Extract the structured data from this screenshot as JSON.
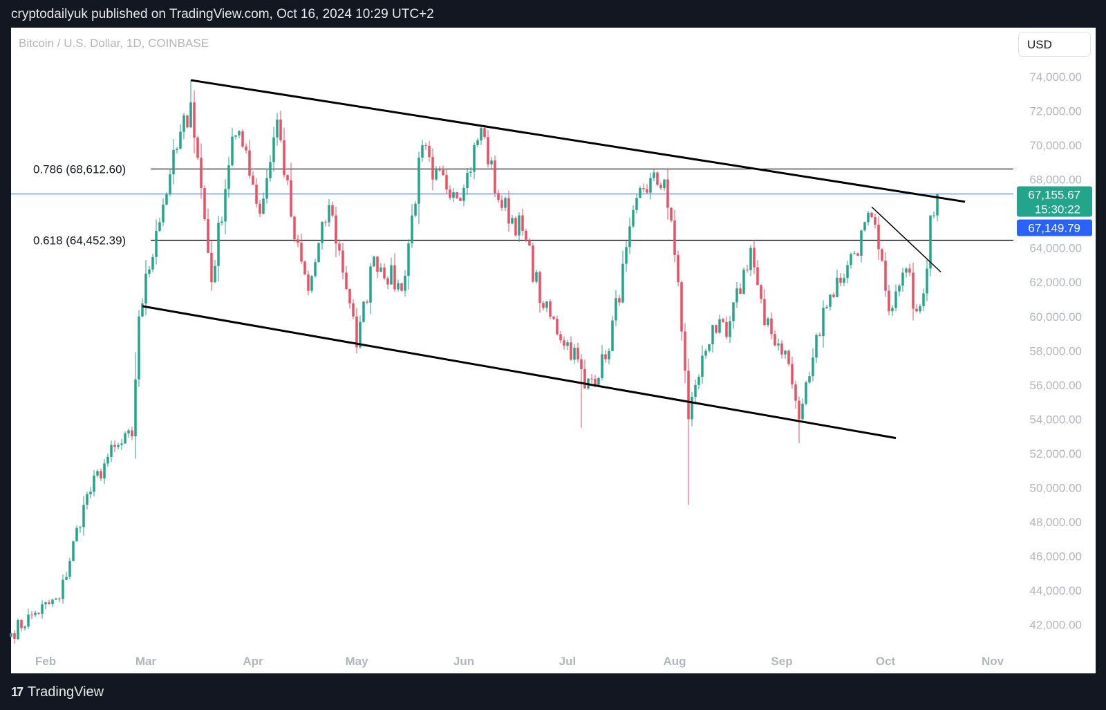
{
  "header": {
    "published_text": "cryptodailyuk published on TradingView.com, Oct 16, 2024 10:29 UTC+2"
  },
  "symbol_title": "Bitcoin / U.S. Dollar, 1D, COINBASE",
  "currency_button": "USD",
  "footer": {
    "logo_icon": "tradingview-logo-icon",
    "brand": "TradingView"
  },
  "colors": {
    "up": "#22a58b",
    "down": "#ef4d62",
    "price_line": "#2962ff",
    "trendline": "#000000"
  },
  "chart_data": {
    "type": "candlestick",
    "title": "Bitcoin / U.S. Dollar, 1D, COINBASE",
    "x_range": [
      "2024-01-22",
      "2024-11-07"
    ],
    "ylim": [
      41000,
      75500
    ],
    "y_ticks": [
      "74,000.00",
      "72,000.00",
      "70,000.00",
      "68,000.00",
      "64,000.00",
      "62,000.00",
      "60,000.00",
      "58,000.00",
      "56,000.00",
      "54,000.00",
      "52,000.00",
      "50,000.00",
      "48,000.00",
      "46,000.00",
      "44,000.00",
      "42,000.00"
    ],
    "y_tick_values": [
      74000,
      72000,
      70000,
      68000,
      64000,
      62000,
      60000,
      58000,
      56000,
      54000,
      52000,
      50000,
      48000,
      46000,
      44000,
      42000
    ],
    "x_ticks": [
      "Feb",
      "Mar",
      "Apr",
      "May",
      "Jun",
      "Jul",
      "Aug",
      "Sep",
      "Oct",
      "Nov"
    ],
    "x_tick_dates": [
      "2024-02-01",
      "2024-03-01",
      "2024-04-01",
      "2024-05-01",
      "2024-06-01",
      "2024-07-01",
      "2024-08-01",
      "2024-09-01",
      "2024-10-01",
      "2024-11-01"
    ],
    "fib_levels": [
      {
        "label": "0.786 (68,612.60)",
        "value": 68612.6
      },
      {
        "label": "0.618 (64,452.39)",
        "value": 64452.39
      }
    ],
    "last_price": {
      "value": 67155.67,
      "label": "67,155.67",
      "countdown": "15:30:22",
      "color": "#22a58b"
    },
    "mark_price": {
      "value": 67149.79,
      "label": "67,149.79",
      "color": "#2962ff"
    },
    "trendlines": [
      {
        "name": "upper-channel",
        "from": [
          "2024-03-14",
          73800
        ],
        "to": [
          "2024-10-24",
          66700
        ],
        "width": 3
      },
      {
        "name": "lower-channel",
        "from": [
          "2024-02-29",
          60600
        ],
        "to": [
          "2024-10-04",
          52900
        ],
        "width": 3
      },
      {
        "name": "short-downtrend",
        "from": [
          "2024-09-27",
          66400
        ],
        "to": [
          "2024-10-17",
          62600
        ],
        "width": 1.5
      }
    ],
    "anchors": [
      [
        "2024-01-22",
        41500
      ],
      [
        "2024-01-29",
        42700
      ],
      [
        "2024-02-05",
        43500
      ],
      [
        "2024-02-12",
        49000
      ],
      [
        "2024-02-19",
        51800
      ],
      [
        "2024-02-26",
        53000
      ],
      [
        "2024-02-28",
        60000
      ],
      [
        "2024-03-04",
        65000
      ],
      [
        "2024-03-08",
        68300
      ],
      [
        "2024-03-14",
        72500
      ],
      [
        "2024-03-17",
        67500
      ],
      [
        "2024-03-20",
        62000
      ],
      [
        "2024-03-26",
        70500
      ],
      [
        "2024-03-30",
        69700
      ],
      [
        "2024-04-03",
        66000
      ],
      [
        "2024-04-08",
        71500
      ],
      [
        "2024-04-13",
        64500
      ],
      [
        "2024-04-17",
        61500
      ],
      [
        "2024-04-23",
        66500
      ],
      [
        "2024-04-30",
        60000
      ],
      [
        "2024-05-01",
        58200
      ],
      [
        "2024-05-06",
        63500
      ],
      [
        "2024-05-14",
        61500
      ],
      [
        "2024-05-20",
        70000
      ],
      [
        "2024-05-23",
        68000
      ],
      [
        "2024-06-01",
        67500
      ],
      [
        "2024-06-06",
        71000
      ],
      [
        "2024-06-11",
        66800
      ],
      [
        "2024-06-18",
        65000
      ],
      [
        "2024-06-24",
        60500
      ],
      [
        "2024-07-04",
        57500
      ],
      [
        "2024-07-06",
        55800
      ],
      [
        "2024-07-12",
        57500
      ],
      [
        "2024-07-22",
        67500
      ],
      [
        "2024-07-29",
        68000
      ],
      [
        "2024-08-02",
        62000
      ],
      [
        "2024-08-05",
        54000
      ],
      [
        "2024-08-07",
        56000
      ],
      [
        "2024-08-12",
        59500
      ],
      [
        "2024-08-16",
        58800
      ],
      [
        "2024-08-23",
        64000
      ],
      [
        "2024-08-27",
        59500
      ],
      [
        "2024-09-02",
        58000
      ],
      [
        "2024-09-06",
        54000
      ],
      [
        "2024-09-10",
        57600
      ],
      [
        "2024-09-13",
        60500
      ],
      [
        "2024-09-20",
        63000
      ],
      [
        "2024-09-27",
        65800
      ],
      [
        "2024-10-01",
        61500
      ],
      [
        "2024-10-03",
        60500
      ],
      [
        "2024-10-07",
        62800
      ],
      [
        "2024-10-10",
        60300
      ],
      [
        "2024-10-13",
        62800
      ],
      [
        "2024-10-14",
        65900
      ],
      [
        "2024-10-16",
        67156
      ]
    ]
  }
}
